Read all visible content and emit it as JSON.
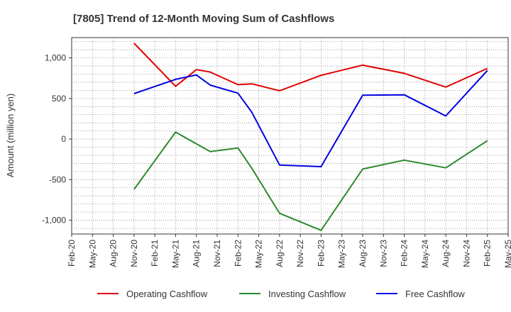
{
  "chart_data": {
    "type": "line",
    "title": "[7805]  Trend of 12-Month Moving Sum of Cashflows",
    "xlabel": "",
    "ylabel": "Amount (million yen)",
    "ylim": [
      -1170,
      1250
    ],
    "yticks": [
      1000,
      500,
      0,
      -500,
      -1000
    ],
    "ytick_labels": [
      "1,000",
      "500",
      "0",
      "-500",
      "-1,000"
    ],
    "xticks": [
      "Feb-20",
      "May-20",
      "Aug-20",
      "Nov-20",
      "Feb-21",
      "May-21",
      "Aug-21",
      "Nov-21",
      "Feb-22",
      "May-22",
      "Aug-22",
      "Nov-22",
      "Feb-23",
      "May-23",
      "Aug-23",
      "Nov-23",
      "Feb-24",
      "May-24",
      "Aug-24",
      "Nov-24",
      "Feb-25",
      "May-25"
    ],
    "grid": true,
    "legend_position": "bottom",
    "series": [
      {
        "name": "Operating Cashflow",
        "color": "#e00000",
        "points": [
          [
            "Nov-20",
            1180
          ],
          [
            "May-21",
            650
          ],
          [
            "Aug-21",
            855
          ],
          [
            "Oct-21",
            825
          ],
          [
            "Feb-22",
            670
          ],
          [
            "Apr-22",
            680
          ],
          [
            "Aug-22",
            595
          ],
          [
            "Feb-23",
            785
          ],
          [
            "Aug-23",
            910
          ],
          [
            "Feb-24",
            810
          ],
          [
            "Aug-24",
            640
          ],
          [
            "Feb-25",
            870
          ]
        ]
      },
      {
        "name": "Investing Cashflow",
        "color": "#2a8a2a",
        "points": [
          [
            "Nov-20",
            -620
          ],
          [
            "May-21",
            85
          ],
          [
            "Aug-21",
            -60
          ],
          [
            "Oct-21",
            -155
          ],
          [
            "Feb-22",
            -110
          ],
          [
            "Apr-22",
            -360
          ],
          [
            "Aug-22",
            -915
          ],
          [
            "Feb-23",
            -1125
          ],
          [
            "Aug-23",
            -370
          ],
          [
            "Feb-24",
            -260
          ],
          [
            "Aug-24",
            -355
          ],
          [
            "Feb-25",
            -20
          ]
        ]
      },
      {
        "name": "Free Cashflow",
        "color": "#0000e0",
        "points": [
          [
            "Nov-20",
            560
          ],
          [
            "May-21",
            735
          ],
          [
            "Aug-21",
            790
          ],
          [
            "Oct-21",
            665
          ],
          [
            "Feb-22",
            565
          ],
          [
            "Apr-22",
            330
          ],
          [
            "Aug-22",
            -320
          ],
          [
            "Feb-23",
            -340
          ],
          [
            "Aug-23",
            540
          ],
          [
            "Feb-24",
            545
          ],
          [
            "Aug-24",
            285
          ],
          [
            "Feb-25",
            845
          ]
        ]
      }
    ]
  }
}
